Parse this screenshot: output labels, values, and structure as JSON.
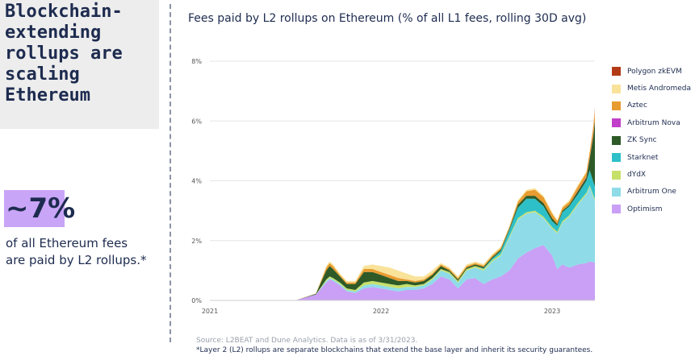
{
  "left_panel": {
    "title": "Blockchain-\nextending\nrollups are\nscaling\nEthereum",
    "stat": "~7%",
    "stat_description": "of all Ethereum fees are paid by L2 rollups.*"
  },
  "footer": {
    "source": "Source: L2BEAT and Dune Analytics. Data is as of 3/31/2023.",
    "footnote": "*Layer 2 (L2) rollups are separate blockchains that extend the base layer and inherit its security guarantees."
  },
  "chart_data": {
    "type": "area",
    "stacked": true,
    "title": "Fees paid by L2 rollups on Ethereum (% of all L1 fees, rolling 30D avg)",
    "xlabel": "",
    "ylabel": "",
    "x_ticks": [
      "2021",
      "2022",
      "2023"
    ],
    "y_ticks": [
      "0%",
      "2%",
      "4%",
      "6%",
      "8%"
    ],
    "ylim": [
      0,
      8
    ],
    "x_unit": "years since 2021-01-01",
    "xlim": [
      0,
      2.25
    ],
    "grid": "horizontal",
    "legend_position": "right",
    "x": [
      0,
      0.5,
      0.62,
      0.68,
      0.7,
      0.72,
      0.76,
      0.8,
      0.85,
      0.9,
      0.95,
      1.0,
      1.05,
      1.1,
      1.15,
      1.2,
      1.25,
      1.3,
      1.35,
      1.4,
      1.45,
      1.5,
      1.55,
      1.6,
      1.65,
      1.7,
      1.75,
      1.8,
      1.85,
      1.9,
      1.95,
      2.0,
      2.03,
      2.06,
      2.1,
      2.15,
      2.2,
      2.22,
      2.24,
      2.25
    ],
    "series": [
      {
        "name": "Optimism",
        "color": "#c9a0f5",
        "values": [
          0,
          0,
          0.2,
          0.6,
          0.7,
          0.65,
          0.5,
          0.3,
          0.25,
          0.4,
          0.45,
          0.4,
          0.35,
          0.3,
          0.35,
          0.35,
          0.4,
          0.55,
          0.8,
          0.7,
          0.4,
          0.7,
          0.75,
          0.55,
          0.7,
          0.8,
          1.0,
          1.4,
          1.6,
          1.75,
          1.85,
          1.5,
          1.05,
          1.2,
          1.1,
          1.2,
          1.25,
          1.3,
          1.28,
          1.25
        ]
      },
      {
        "name": "Arbitrum One",
        "color": "#8fdce8",
        "values": [
          0,
          0,
          0,
          0.05,
          0.05,
          0.05,
          0.05,
          0.05,
          0.05,
          0.1,
          0.1,
          0.1,
          0.1,
          0.1,
          0.1,
          0.1,
          0.1,
          0.15,
          0.2,
          0.2,
          0.2,
          0.3,
          0.35,
          0.45,
          0.6,
          0.7,
          1.1,
          1.3,
          1.3,
          1.2,
          0.9,
          0.9,
          1.2,
          1.4,
          1.7,
          2.0,
          2.3,
          2.5,
          2.2,
          2.1
        ]
      },
      {
        "name": "dYdX",
        "color": "#c7e06a",
        "values": [
          0,
          0,
          0,
          0.05,
          0.05,
          0.05,
          0.05,
          0.05,
          0.05,
          0.1,
          0.1,
          0.1,
          0.1,
          0.1,
          0.1,
          0.05,
          0.05,
          0.05,
          0.05,
          0.05,
          0.05,
          0.05,
          0.05,
          0.05,
          0.05,
          0.05,
          0.05,
          0.05,
          0.05,
          0.05,
          0.05,
          0.05,
          0.05,
          0.05,
          0.05,
          0.05,
          0.05,
          0.05,
          0.05,
          0.05
        ]
      },
      {
        "name": "Starknet",
        "color": "#2ec0c9",
        "values": [
          0,
          0,
          0,
          0,
          0,
          0,
          0,
          0,
          0,
          0,
          0,
          0,
          0,
          0,
          0,
          0,
          0,
          0,
          0,
          0,
          0,
          0,
          0,
          0.02,
          0.05,
          0.1,
          0.2,
          0.35,
          0.45,
          0.4,
          0.35,
          0.2,
          0.2,
          0.3,
          0.3,
          0.3,
          0.4,
          0.5,
          0.45,
          0.4
        ]
      },
      {
        "name": "ZK Sync",
        "color": "#2d5a27",
        "values": [
          0,
          0,
          0.02,
          0.3,
          0.35,
          0.3,
          0.2,
          0.15,
          0.2,
          0.35,
          0.3,
          0.25,
          0.2,
          0.15,
          0.1,
          0.1,
          0.1,
          0.1,
          0.1,
          0.05,
          0.05,
          0.05,
          0.05,
          0.05,
          0.05,
          0.05,
          0.05,
          0.1,
          0.1,
          0.1,
          0.1,
          0.1,
          0.05,
          0.05,
          0.05,
          0.1,
          0.1,
          0.4,
          1.5,
          2.2
        ]
      },
      {
        "name": "Arbitrum Nova",
        "color": "#c13fc9",
        "values": [
          0,
          0,
          0,
          0,
          0,
          0,
          0,
          0,
          0,
          0,
          0,
          0,
          0,
          0,
          0,
          0,
          0,
          0,
          0,
          0,
          0,
          0,
          0,
          0,
          0,
          0,
          0,
          0,
          0,
          0,
          0,
          0,
          0,
          0,
          0,
          0.01,
          0.02,
          0.02,
          0.03,
          0.03
        ]
      },
      {
        "name": "Aztec",
        "color": "#e89b2f",
        "values": [
          0,
          0,
          0.01,
          0.1,
          0.1,
          0.1,
          0.05,
          0.05,
          0.05,
          0.1,
          0.1,
          0.1,
          0.1,
          0.1,
          0.05,
          0.05,
          0.05,
          0.05,
          0.05,
          0.05,
          0.05,
          0.05,
          0.05,
          0.05,
          0.05,
          0.05,
          0.05,
          0.1,
          0.15,
          0.2,
          0.2,
          0.15,
          0.1,
          0.1,
          0.1,
          0.15,
          0.15,
          0.2,
          0.25,
          0.3
        ]
      },
      {
        "name": "Metis Andromeda",
        "color": "#f9e29a",
        "values": [
          0,
          0,
          0,
          0.05,
          0.05,
          0.05,
          0.05,
          0.05,
          0.05,
          0.1,
          0.15,
          0.2,
          0.25,
          0.25,
          0.2,
          0.15,
          0.1,
          0.1,
          0.05,
          0.05,
          0.05,
          0.05,
          0.05,
          0.05,
          0.05,
          0.05,
          0.05,
          0.05,
          0.05,
          0.05,
          0.05,
          0.05,
          0.05,
          0.05,
          0.05,
          0.05,
          0.05,
          0.05,
          0.05,
          0.05
        ]
      },
      {
        "name": "Polygon zkEVM",
        "color": "#b23a16",
        "values": [
          0,
          0,
          0,
          0,
          0,
          0,
          0,
          0,
          0,
          0,
          0,
          0,
          0,
          0,
          0,
          0,
          0,
          0,
          0,
          0,
          0,
          0,
          0,
          0,
          0,
          0,
          0,
          0,
          0,
          0,
          0,
          0,
          0,
          0,
          0,
          0,
          0,
          0,
          0.02,
          0.05
        ]
      }
    ]
  }
}
